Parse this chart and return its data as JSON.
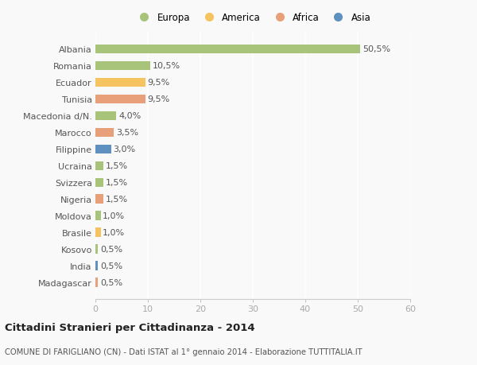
{
  "countries": [
    "Albania",
    "Romania",
    "Ecuador",
    "Tunisia",
    "Macedonia d/N.",
    "Marocco",
    "Filippine",
    "Ucraina",
    "Svizzera",
    "Nigeria",
    "Moldova",
    "Brasile",
    "Kosovo",
    "India",
    "Madagascar"
  ],
  "values": [
    50.5,
    10.5,
    9.5,
    9.5,
    4.0,
    3.5,
    3.0,
    1.5,
    1.5,
    1.5,
    1.0,
    1.0,
    0.5,
    0.5,
    0.5
  ],
  "labels": [
    "50,5%",
    "10,5%",
    "9,5%",
    "9,5%",
    "4,0%",
    "3,5%",
    "3,0%",
    "1,5%",
    "1,5%",
    "1,5%",
    "1,0%",
    "1,0%",
    "0,5%",
    "0,5%",
    "0,5%"
  ],
  "colors": [
    "#a8c47a",
    "#a8c47a",
    "#f5c460",
    "#e8a07a",
    "#a8c47a",
    "#e8a07a",
    "#6090c0",
    "#a8c47a",
    "#a8c47a",
    "#e8a07a",
    "#a8c47a",
    "#f5c460",
    "#a8c47a",
    "#6090c0",
    "#e8a07a"
  ],
  "legend_labels": [
    "Europa",
    "America",
    "Africa",
    "Asia"
  ],
  "legend_colors": [
    "#a8c47a",
    "#f5c460",
    "#e8a07a",
    "#6090c0"
  ],
  "title": "Cittadini Stranieri per Cittadinanza - 2014",
  "subtitle": "COMUNE DI FARIGLIANO (CN) - Dati ISTAT al 1° gennaio 2014 - Elaborazione TUTTITALIA.IT",
  "xlim": [
    0,
    60
  ],
  "xticks": [
    0,
    10,
    20,
    30,
    40,
    50,
    60
  ],
  "background_color": "#f9f9f9",
  "grid_color": "#ffffff",
  "label_fontsize": 8.0,
  "ytick_fontsize": 8.0,
  "xtick_fontsize": 8.0
}
